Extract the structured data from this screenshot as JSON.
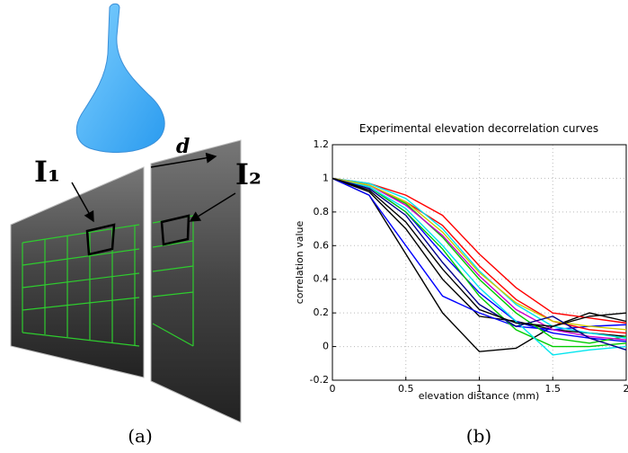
{
  "panel_labels": [
    "(a)",
    "(b)"
  ],
  "illustration": {
    "distance_label": "d",
    "image_1_label": "I₁",
    "image_2_label": "I₂"
  },
  "chart_data": {
    "type": "line",
    "title": "Experimental elevation decorrelation curves",
    "xlabel": "elevation distance (mm)",
    "ylabel": "correlation value",
    "x": [
      0,
      0.25,
      0.5,
      0.75,
      1,
      1.25,
      1.5,
      1.75,
      2
    ],
    "xlim": [
      0,
      2
    ],
    "xticks": [
      0,
      0.5,
      1,
      1.5,
      2
    ],
    "ylim": [
      -0.2,
      1.2
    ],
    "yticks": [
      -0.2,
      0,
      0.2,
      0.4,
      0.6,
      0.8,
      1,
      1.2
    ],
    "grid": true,
    "series": [
      {
        "color": "#000000",
        "values": [
          1,
          0.9,
          0.55,
          0.2,
          -0.03,
          -0.01,
          0.12,
          0.2,
          0.15
        ]
      },
      {
        "color": "#000000",
        "values": [
          1,
          0.92,
          0.7,
          0.4,
          0.18,
          0.15,
          0.1,
          0.08,
          0.06
        ]
      },
      {
        "color": "#0000ff",
        "values": [
          1,
          0.9,
          0.6,
          0.3,
          0.2,
          0.12,
          0.1,
          0.12,
          0.13
        ]
      },
      {
        "color": "#0000ff",
        "values": [
          1,
          0.95,
          0.8,
          0.55,
          0.32,
          0.15,
          0.08,
          0.05,
          0.03
        ]
      },
      {
        "color": "#ff0000",
        "values": [
          1,
          0.97,
          0.9,
          0.78,
          0.55,
          0.35,
          0.2,
          0.17,
          0.14
        ]
      },
      {
        "color": "#ff0000",
        "values": [
          1,
          0.96,
          0.86,
          0.72,
          0.48,
          0.28,
          0.15,
          0.1,
          0.08
        ]
      },
      {
        "color": "#00cc00",
        "values": [
          1,
          0.96,
          0.85,
          0.65,
          0.4,
          0.2,
          0.05,
          0.02,
          0.06
        ]
      },
      {
        "color": "#00cc00",
        "values": [
          1,
          0.95,
          0.8,
          0.58,
          0.3,
          0.1,
          0,
          0,
          0.02
        ]
      },
      {
        "color": "#00e5ee",
        "values": [
          1,
          0.95,
          0.82,
          0.6,
          0.35,
          0.15,
          -0.05,
          -0.02,
          0
        ]
      },
      {
        "color": "#00e5ee",
        "values": [
          1,
          0.97,
          0.88,
          0.7,
          0.45,
          0.25,
          0.12,
          0.08,
          0.05
        ]
      },
      {
        "color": "#cc00cc",
        "values": [
          1,
          0.96,
          0.84,
          0.66,
          0.42,
          0.22,
          0.1,
          0.06,
          0.04
        ]
      },
      {
        "color": "#cccc00",
        "values": [
          1,
          0.96,
          0.86,
          0.68,
          0.44,
          0.26,
          0.15,
          0.12,
          0.1
        ]
      },
      {
        "color": "#00008b",
        "values": [
          1,
          0.94,
          0.78,
          0.5,
          0.25,
          0.12,
          0.18,
          0.05,
          -0.02
        ]
      },
      {
        "color": "#000000",
        "values": [
          1,
          0.93,
          0.74,
          0.46,
          0.22,
          0.14,
          0.12,
          0.18,
          0.2
        ]
      }
    ]
  }
}
